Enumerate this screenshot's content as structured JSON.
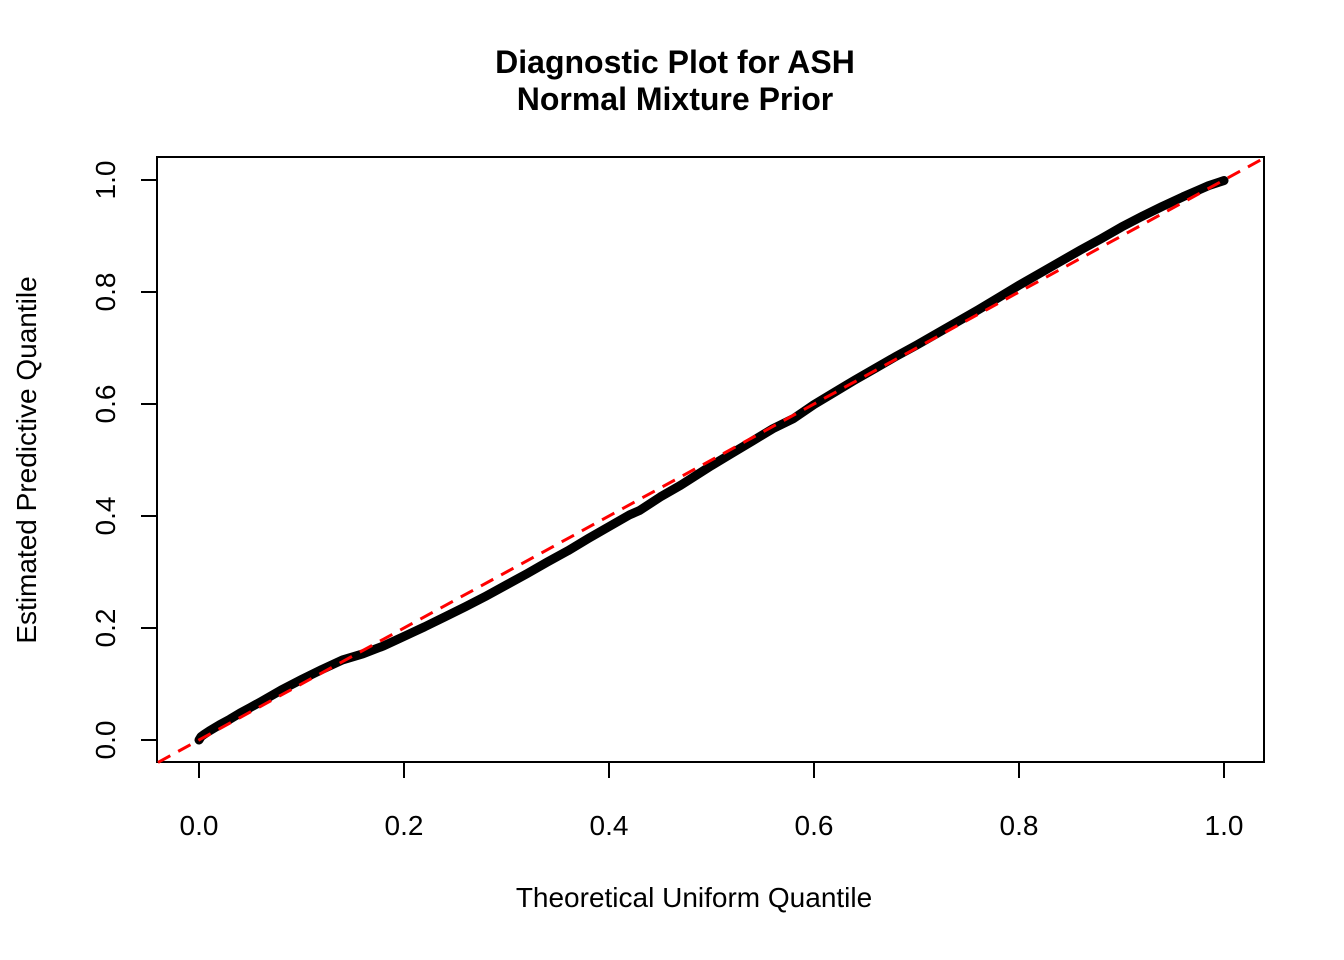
{
  "title": {
    "line1": "Diagnostic Plot for ASH",
    "line2": "Normal Mixture Prior"
  },
  "axes": {
    "x_label": "Theoretical Uniform Quantile",
    "y_label": "Estimated Predictive Quantile",
    "x_ticks": [
      "0.0",
      "0.2",
      "0.4",
      "0.6",
      "0.8",
      "1.0"
    ],
    "y_ticks": [
      "0.0",
      "0.2",
      "0.4",
      "0.6",
      "0.8",
      "1.0"
    ]
  },
  "colors": {
    "background": "#FFFFFF",
    "curve": "#000000",
    "reference_line": "#FF0000",
    "axis": "#000000",
    "text": "#000000"
  },
  "chart_data": {
    "type": "scatter",
    "title": "Diagnostic Plot for ASH\nNormal Mixture Prior",
    "xlabel": "Theoretical Uniform Quantile",
    "ylabel": "Estimated Predictive Quantile",
    "xlim": [
      -0.04,
      1.04
    ],
    "ylim": [
      -0.04,
      1.04
    ],
    "x_tick_values": [
      0.0,
      0.2,
      0.4,
      0.6,
      0.8,
      1.0
    ],
    "y_tick_values": [
      0.0,
      0.2,
      0.4,
      0.6,
      0.8,
      1.0
    ],
    "grid": false,
    "legend": "none",
    "series": [
      {
        "name": "estimated-predictive-quantile-points",
        "kind": "points",
        "color": "#000000",
        "points": [
          [
            0.0,
            0.0
          ],
          [
            0.002,
            0.006
          ],
          [
            0.005,
            0.01
          ],
          [
            0.01,
            0.016
          ],
          [
            0.02,
            0.027
          ],
          [
            0.03,
            0.037
          ],
          [
            0.04,
            0.048
          ],
          [
            0.05,
            0.058
          ],
          [
            0.06,
            0.068
          ],
          [
            0.08,
            0.089
          ],
          [
            0.1,
            0.108
          ],
          [
            0.12,
            0.126
          ],
          [
            0.14,
            0.143
          ],
          [
            0.16,
            0.154
          ],
          [
            0.18,
            0.168
          ],
          [
            0.2,
            0.185
          ],
          [
            0.22,
            0.202
          ],
          [
            0.24,
            0.22
          ],
          [
            0.26,
            0.238
          ],
          [
            0.28,
            0.257
          ],
          [
            0.3,
            0.277
          ],
          [
            0.32,
            0.297
          ],
          [
            0.34,
            0.318
          ],
          [
            0.36,
            0.338
          ],
          [
            0.38,
            0.36
          ],
          [
            0.4,
            0.381
          ],
          [
            0.42,
            0.402
          ],
          [
            0.43,
            0.41
          ],
          [
            0.45,
            0.434
          ],
          [
            0.47,
            0.455
          ],
          [
            0.5,
            0.49
          ],
          [
            0.52,
            0.512
          ],
          [
            0.54,
            0.534
          ],
          [
            0.56,
            0.556
          ],
          [
            0.58,
            0.574
          ],
          [
            0.6,
            0.599
          ],
          [
            0.62,
            0.621
          ],
          [
            0.64,
            0.643
          ],
          [
            0.66,
            0.664
          ],
          [
            0.68,
            0.685
          ],
          [
            0.7,
            0.705
          ],
          [
            0.72,
            0.726
          ],
          [
            0.74,
            0.747
          ],
          [
            0.76,
            0.768
          ],
          [
            0.78,
            0.79
          ],
          [
            0.8,
            0.812
          ],
          [
            0.82,
            0.833
          ],
          [
            0.84,
            0.854
          ],
          [
            0.86,
            0.875
          ],
          [
            0.88,
            0.895
          ],
          [
            0.9,
            0.916
          ],
          [
            0.92,
            0.935
          ],
          [
            0.94,
            0.953
          ],
          [
            0.96,
            0.97
          ],
          [
            0.975,
            0.982
          ],
          [
            0.985,
            0.99
          ],
          [
            0.995,
            0.996
          ],
          [
            1.0,
            0.999
          ]
        ]
      },
      {
        "name": "reference-diagonal",
        "kind": "line",
        "style": "dashed",
        "color": "#FF0000",
        "equation": "y = x",
        "from": [
          -0.04,
          -0.04
        ],
        "to": [
          1.04,
          1.04
        ]
      }
    ]
  }
}
